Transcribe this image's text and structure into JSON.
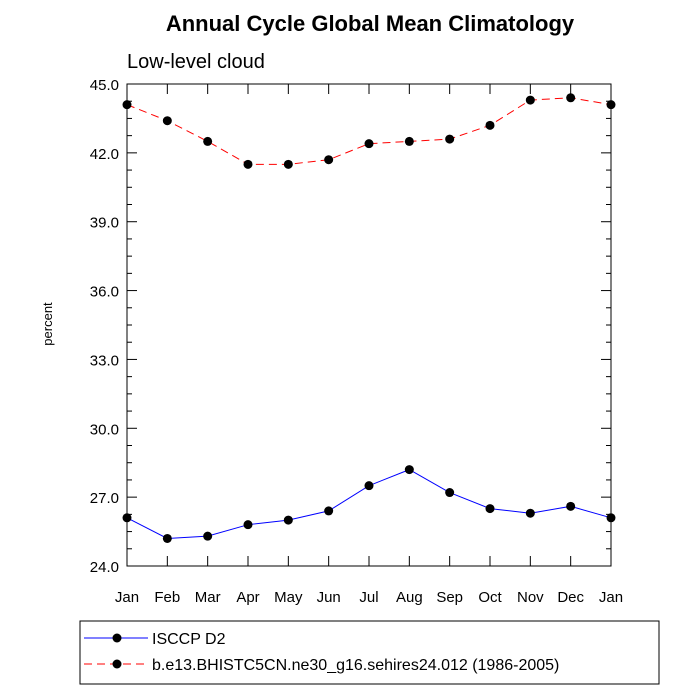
{
  "chart_data": {
    "type": "line",
    "title": "Annual Cycle Global Mean Climatology",
    "subtitle": "Low-level cloud",
    "xlabel": "",
    "ylabel": "percent",
    "categories": [
      "Jan",
      "Feb",
      "Mar",
      "Apr",
      "May",
      "Jun",
      "Jul",
      "Aug",
      "Sep",
      "Oct",
      "Nov",
      "Dec",
      "Jan"
    ],
    "ylim": [
      24.0,
      45.0
    ],
    "yticks": [
      "24.0",
      "27.0",
      "30.0",
      "33.0",
      "36.0",
      "39.0",
      "42.0",
      "45.0"
    ],
    "grid": false,
    "legend_position": "bottom",
    "series": [
      {
        "name": "ISCCP D2",
        "color": "#0000ff",
        "dash": "solid",
        "marker": "filled-circle",
        "values": [
          26.1,
          25.2,
          25.3,
          25.8,
          26.0,
          26.4,
          27.5,
          28.2,
          27.2,
          26.5,
          26.3,
          26.6,
          26.1
        ]
      },
      {
        "name": "b.e13.BHISTC5CN.ne30_g16.sehires24.012 (1986-2005)",
        "color": "#ff0000",
        "dash": "dashed",
        "marker": "filled-circle",
        "values": [
          44.1,
          43.4,
          42.5,
          41.5,
          41.5,
          41.7,
          42.4,
          42.5,
          42.6,
          43.2,
          44.3,
          44.4,
          44.1
        ]
      }
    ]
  }
}
